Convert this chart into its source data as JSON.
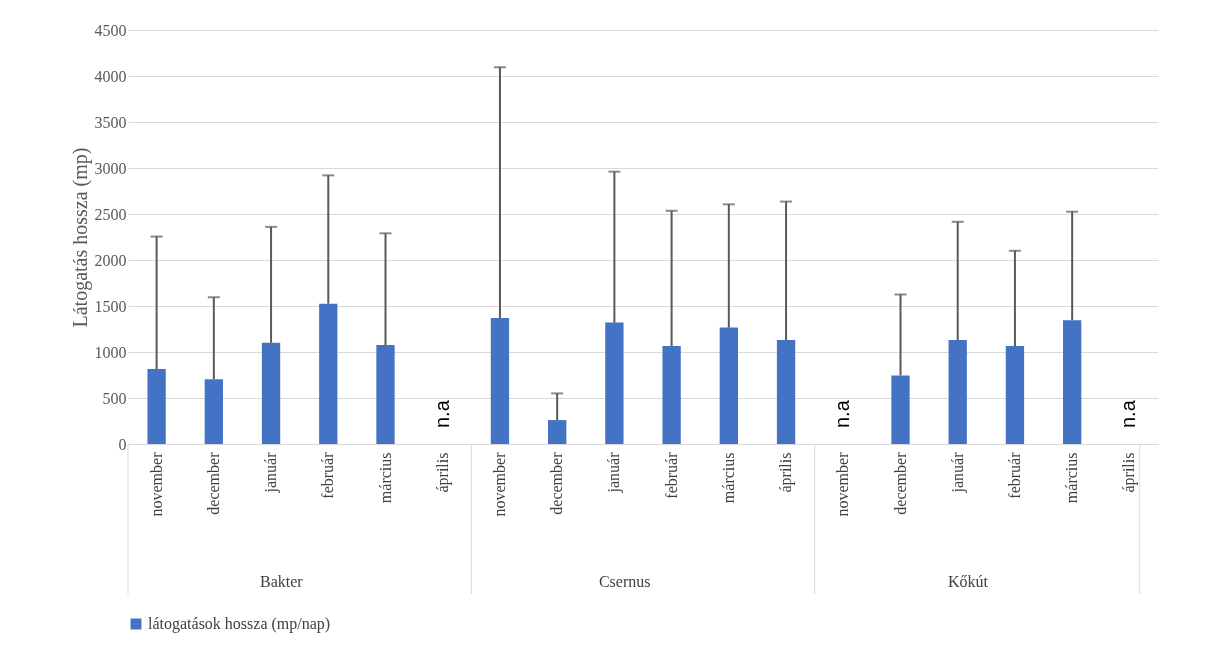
{
  "chart_data": {
    "type": "bar",
    "ylabel": "Látogatás hossza (mp)",
    "categories": [
      "november",
      "december",
      "január",
      "február",
      "március",
      "április",
      "november",
      "december",
      "január",
      "február",
      "március",
      "április",
      "november",
      "december",
      "január",
      "február",
      "március",
      "április"
    ],
    "series": [
      {
        "name": "látogatások hossza (mp/nap)",
        "color": "#4472c4",
        "values": [
          815,
          705,
          1100,
          1525,
          1075,
          null,
          1370,
          260,
          1320,
          1065,
          1265,
          1130,
          null,
          745,
          1130,
          1065,
          1345,
          null
        ],
        "errors": [
          [
            815,
            2255
          ],
          [
            705,
            1595
          ],
          [
            1100,
            2360
          ],
          [
            1525,
            2920
          ],
          [
            1075,
            2290
          ],
          null,
          [
            1370,
            4095
          ],
          [
            260,
            550
          ],
          [
            1320,
            2960
          ],
          [
            1065,
            2535
          ],
          [
            1265,
            2605
          ],
          [
            1130,
            2635
          ],
          null,
          [
            745,
            1625
          ],
          [
            1130,
            2415
          ],
          [
            1065,
            2100
          ],
          [
            1345,
            2525
          ],
          null
        ],
        "value_labels": [
          null,
          null,
          null,
          null,
          null,
          "n.a",
          null,
          null,
          null,
          null,
          null,
          null,
          "n.a",
          null,
          null,
          null,
          null,
          "n.a"
        ]
      }
    ],
    "annotations": [
      "Bakter",
      "Csernus",
      "Kőkút"
    ],
    "ylim": [
      0,
      4500
    ],
    "yticks": [
      0,
      500,
      1000,
      1500,
      2000,
      2500,
      3000,
      3500,
      4000,
      4500
    ],
    "grid": "y",
    "legend": "bottom"
  }
}
